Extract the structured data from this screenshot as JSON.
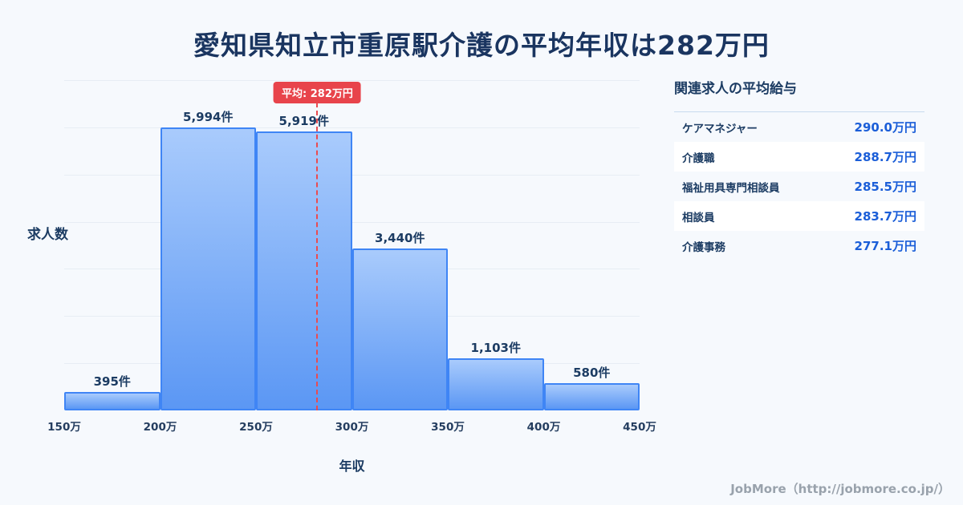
{
  "page": {
    "title": "愛知県知立市重原駅介護の平均年収は282万円",
    "footer": "JobMore（http://jobmore.co.jp/）"
  },
  "chart_data": {
    "type": "bar",
    "title": "愛知県知立市重原駅介護の平均年収は282万円",
    "xlabel": "年収",
    "ylabel": "求人数",
    "bin_edges": [
      150,
      200,
      250,
      300,
      350,
      400,
      450
    ],
    "x_tick_labels": [
      "150万",
      "200万",
      "250万",
      "300万",
      "350万",
      "400万",
      "450万"
    ],
    "categories": [
      "150万-200万",
      "200万-250万",
      "250万-300万",
      "300万-350万",
      "350万-400万",
      "400万-450万"
    ],
    "values": [
      395,
      5994,
      5919,
      3440,
      1103,
      580
    ],
    "bar_labels": [
      "395件",
      "5,994件",
      "5,919件",
      "3,440件",
      "1,103件",
      "580件"
    ],
    "x_range": [
      150,
      450
    ],
    "ylim": [
      0,
      7000
    ],
    "grid_step": 1000,
    "average": {
      "value": 282,
      "label": "平均: 282万円"
    },
    "colors": {
      "bar_top": "#a9cbfc",
      "bar_bottom": "#5b97f4",
      "bar_border": "#3f85f5",
      "average_line": "#ea4b50",
      "title_text": "#1a3560",
      "value_text": "#1b5ed8"
    },
    "legend": null,
    "grid": true
  },
  "side_panel": {
    "heading": "関連求人の平均給与",
    "rows": [
      {
        "label": "ケアマネジャー",
        "value": "290.0万円"
      },
      {
        "label": "介護職",
        "value": "288.7万円"
      },
      {
        "label": "福祉用具専門相談員",
        "value": "285.5万円"
      },
      {
        "label": "相談員",
        "value": "283.7万円"
      },
      {
        "label": "介護事務",
        "value": "277.1万円"
      }
    ]
  }
}
